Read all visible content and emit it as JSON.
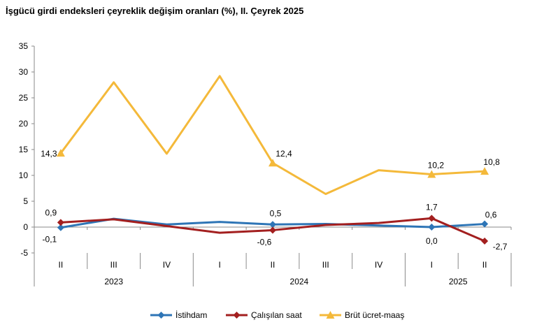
{
  "title": "İşgücü girdi endeksleri çeyreklik değişim oranları (%), II. Çeyrek 2025",
  "colors": {
    "employment": "#2E75B6",
    "hours": "#A31F1F",
    "wage": "#F4B93A",
    "axis": "#8a8a8a"
  },
  "chart_data": {
    "type": "line",
    "categories": [
      "II",
      "III",
      "IV",
      "I",
      "II",
      "III",
      "IV",
      "I",
      "II"
    ],
    "year_groups": [
      {
        "label": "2023",
        "start": 0,
        "end": 2
      },
      {
        "label": "2024",
        "start": 3,
        "end": 6
      },
      {
        "label": "2025",
        "start": 7,
        "end": 8
      }
    ],
    "ylim": [
      -5,
      35
    ],
    "yticks": [
      "-5",
      "0",
      "5",
      "10",
      "15",
      "20",
      "25",
      "30",
      "35"
    ],
    "grid": false,
    "legend": "bottom",
    "series": [
      {
        "name": "İstihdam",
        "marker": "diamond",
        "values": [
          -0.1,
          1.6,
          0.5,
          1.0,
          0.5,
          0.6,
          0.3,
          0.0,
          0.6
        ],
        "labels": [
          "-0,1",
          "",
          "",
          "",
          "0,5",
          "",
          "",
          "0,0",
          "0,6"
        ]
      },
      {
        "name": "Çalışılan saat",
        "marker": "diamond",
        "values": [
          0.9,
          1.5,
          0.2,
          -1.1,
          -0.6,
          0.4,
          0.8,
          1.7,
          -2.7
        ],
        "labels": [
          "0,9",
          "",
          "",
          "",
          "-0,6",
          "",
          "",
          "1,7",
          "-2,7"
        ]
      },
      {
        "name": "Brüt ücret-maaş",
        "marker": "triangle",
        "values": [
          14.3,
          28.0,
          14.2,
          29.2,
          12.4,
          6.4,
          11.0,
          10.2,
          10.8
        ],
        "labels": [
          "14,3",
          "",
          "",
          "",
          "12,4",
          "",
          "",
          "10,2",
          "10,8"
        ]
      }
    ]
  }
}
